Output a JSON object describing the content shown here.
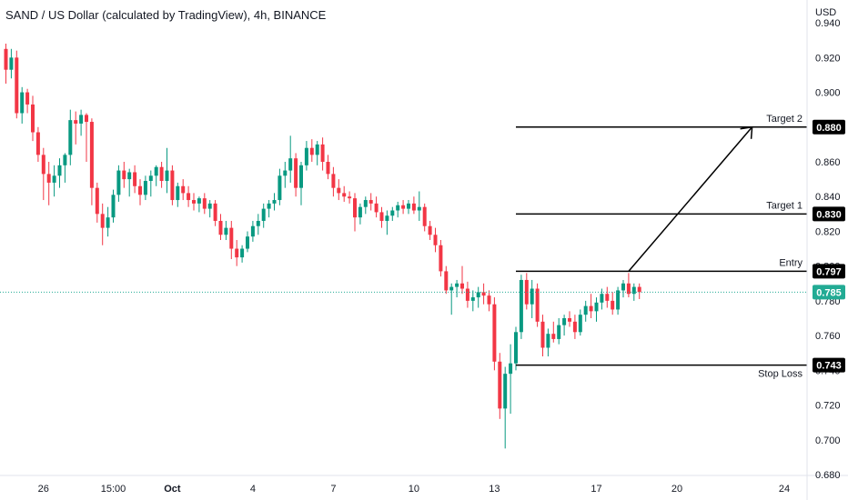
{
  "header": {
    "title": "SAND / US Dollar (calculated by TradingView), 4h, BINANCE",
    "currency": "USD"
  },
  "chart_data": {
    "type": "candlestick",
    "symbol": "SAND / US Dollar",
    "interval": "4h",
    "exchange": "BINANCE",
    "ylim": [
      0.68,
      0.95
    ],
    "y_ticks": [
      "0.680",
      "0.700",
      "0.720",
      "0.740",
      "0.760",
      "0.780",
      "0.800",
      "0.820",
      "0.840",
      "0.860",
      "0.880",
      "0.900",
      "0.920",
      "0.940"
    ],
    "x_ticks": [
      {
        "label": "26",
        "bar": 7
      },
      {
        "label": "15:00",
        "bar": 20
      },
      {
        "label": "Oct",
        "bar": 31
      },
      {
        "label": "4",
        "bar": 46
      },
      {
        "label": "7",
        "bar": 61
      },
      {
        "label": "10",
        "bar": 76
      },
      {
        "label": "13",
        "bar": 91
      },
      {
        "label": "17",
        "bar": 110
      },
      {
        "label": "20",
        "bar": 125
      },
      {
        "label": "24",
        "bar": 145
      }
    ],
    "current_price": "0.785",
    "levels": [
      {
        "name": "Target 2",
        "value": 0.88,
        "label": "0.880",
        "from_bar": 95
      },
      {
        "name": "Target 1",
        "value": 0.83,
        "label": "0.830",
        "from_bar": 95
      },
      {
        "name": "Entry",
        "value": 0.797,
        "label": "0.797",
        "from_bar": 95
      },
      {
        "name": "Stop Loss",
        "value": 0.743,
        "label": "0.743",
        "from_bar": 95
      }
    ],
    "projection_arrow": {
      "from": [
        116,
        0.797
      ],
      "to": [
        139,
        0.88
      ]
    },
    "colors": {
      "up": "#089981",
      "down": "#f23645",
      "current": "#22ab94",
      "level": "#000000",
      "text": "#131722"
    },
    "candles": [
      [
        0.925,
        0.928,
        0.905,
        0.913
      ],
      [
        0.913,
        0.925,
        0.908,
        0.92
      ],
      [
        0.92,
        0.924,
        0.885,
        0.888
      ],
      [
        0.888,
        0.903,
        0.882,
        0.9
      ],
      [
        0.9,
        0.902,
        0.888,
        0.893
      ],
      [
        0.893,
        0.898,
        0.872,
        0.877
      ],
      [
        0.877,
        0.88,
        0.86,
        0.864
      ],
      [
        0.864,
        0.868,
        0.838,
        0.853
      ],
      [
        0.853,
        0.86,
        0.835,
        0.848
      ],
      [
        0.848,
        0.858,
        0.84,
        0.852
      ],
      [
        0.852,
        0.862,
        0.845,
        0.858
      ],
      [
        0.858,
        0.865,
        0.848,
        0.864
      ],
      [
        0.864,
        0.89,
        0.858,
        0.884
      ],
      [
        0.884,
        0.889,
        0.87,
        0.882
      ],
      [
        0.882,
        0.89,
        0.875,
        0.887
      ],
      [
        0.887,
        0.888,
        0.86,
        0.883
      ],
      [
        0.883,
        0.885,
        0.835,
        0.845
      ],
      [
        0.845,
        0.848,
        0.825,
        0.83
      ],
      [
        0.83,
        0.836,
        0.812,
        0.822
      ],
      [
        0.822,
        0.834,
        0.817,
        0.828
      ],
      [
        0.828,
        0.844,
        0.825,
        0.841
      ],
      [
        0.841,
        0.858,
        0.837,
        0.855
      ],
      [
        0.855,
        0.86,
        0.845,
        0.85
      ],
      [
        0.85,
        0.856,
        0.84,
        0.854
      ],
      [
        0.854,
        0.858,
        0.842,
        0.846
      ],
      [
        0.846,
        0.85,
        0.835,
        0.841
      ],
      [
        0.841,
        0.852,
        0.838,
        0.849
      ],
      [
        0.849,
        0.855,
        0.84,
        0.852
      ],
      [
        0.852,
        0.858,
        0.846,
        0.857
      ],
      [
        0.857,
        0.86,
        0.845,
        0.849
      ],
      [
        0.849,
        0.868,
        0.842,
        0.855
      ],
      [
        0.855,
        0.858,
        0.835,
        0.838
      ],
      [
        0.838,
        0.848,
        0.834,
        0.846
      ],
      [
        0.846,
        0.85,
        0.838,
        0.842
      ],
      [
        0.842,
        0.846,
        0.834,
        0.838
      ],
      [
        0.838,
        0.842,
        0.832,
        0.836
      ],
      [
        0.836,
        0.84,
        0.831,
        0.839
      ],
      [
        0.839,
        0.842,
        0.83,
        0.833
      ],
      [
        0.833,
        0.838,
        0.828,
        0.836
      ],
      [
        0.836,
        0.838,
        0.823,
        0.826
      ],
      [
        0.826,
        0.83,
        0.815,
        0.818
      ],
      [
        0.818,
        0.826,
        0.815,
        0.822
      ],
      [
        0.822,
        0.826,
        0.804,
        0.81
      ],
      [
        0.81,
        0.815,
        0.8,
        0.805
      ],
      [
        0.805,
        0.812,
        0.802,
        0.81
      ],
      [
        0.81,
        0.82,
        0.808,
        0.817
      ],
      [
        0.817,
        0.826,
        0.814,
        0.823
      ],
      [
        0.823,
        0.83,
        0.818,
        0.826
      ],
      [
        0.826,
        0.836,
        0.822,
        0.833
      ],
      [
        0.833,
        0.838,
        0.828,
        0.836
      ],
      [
        0.836,
        0.842,
        0.832,
        0.838
      ],
      [
        0.838,
        0.856,
        0.835,
        0.852
      ],
      [
        0.852,
        0.86,
        0.845,
        0.855
      ],
      [
        0.855,
        0.875,
        0.848,
        0.862
      ],
      [
        0.862,
        0.865,
        0.84,
        0.845
      ],
      [
        0.845,
        0.86,
        0.835,
        0.858
      ],
      [
        0.858,
        0.872,
        0.855,
        0.868
      ],
      [
        0.868,
        0.873,
        0.86,
        0.864
      ],
      [
        0.864,
        0.872,
        0.858,
        0.87
      ],
      [
        0.87,
        0.874,
        0.855,
        0.86
      ],
      [
        0.86,
        0.864,
        0.85,
        0.853
      ],
      [
        0.853,
        0.857,
        0.84,
        0.845
      ],
      [
        0.845,
        0.85,
        0.838,
        0.842
      ],
      [
        0.842,
        0.846,
        0.837,
        0.84
      ],
      [
        0.84,
        0.843,
        0.836,
        0.839
      ],
      [
        0.839,
        0.842,
        0.82,
        0.828
      ],
      [
        0.828,
        0.836,
        0.824,
        0.834
      ],
      [
        0.834,
        0.84,
        0.83,
        0.838
      ],
      [
        0.838,
        0.842,
        0.832,
        0.836
      ],
      [
        0.836,
        0.84,
        0.828,
        0.831
      ],
      [
        0.831,
        0.834,
        0.822,
        0.826
      ],
      [
        0.826,
        0.832,
        0.818,
        0.829
      ],
      [
        0.829,
        0.834,
        0.826,
        0.832
      ],
      [
        0.832,
        0.837,
        0.828,
        0.835
      ],
      [
        0.835,
        0.838,
        0.83,
        0.833
      ],
      [
        0.833,
        0.838,
        0.83,
        0.836
      ],
      [
        0.836,
        0.84,
        0.83,
        0.832
      ],
      [
        0.832,
        0.843,
        0.826,
        0.834
      ],
      [
        0.834,
        0.836,
        0.82,
        0.823
      ],
      [
        0.823,
        0.826,
        0.815,
        0.818
      ],
      [
        0.818,
        0.822,
        0.808,
        0.812
      ],
      [
        0.812,
        0.815,
        0.794,
        0.797
      ],
      [
        0.797,
        0.8,
        0.784,
        0.786
      ],
      [
        0.786,
        0.79,
        0.772,
        0.788
      ],
      [
        0.788,
        0.792,
        0.782,
        0.79
      ],
      [
        0.79,
        0.8,
        0.784,
        0.787
      ],
      [
        0.787,
        0.791,
        0.776,
        0.78
      ],
      [
        0.78,
        0.786,
        0.774,
        0.782
      ],
      [
        0.782,
        0.788,
        0.776,
        0.785
      ],
      [
        0.785,
        0.79,
        0.778,
        0.783
      ],
      [
        0.783,
        0.786,
        0.774,
        0.778
      ],
      [
        0.778,
        0.782,
        0.74,
        0.745
      ],
      [
        0.745,
        0.75,
        0.712,
        0.718
      ],
      [
        0.718,
        0.742,
        0.695,
        0.738
      ],
      [
        0.738,
        0.755,
        0.715,
        0.744
      ],
      [
        0.744,
        0.765,
        0.74,
        0.762
      ],
      [
        0.762,
        0.795,
        0.758,
        0.792
      ],
      [
        0.792,
        0.796,
        0.775,
        0.778
      ],
      [
        0.778,
        0.792,
        0.77,
        0.787
      ],
      [
        0.787,
        0.79,
        0.765,
        0.768
      ],
      [
        0.768,
        0.772,
        0.748,
        0.753
      ],
      [
        0.753,
        0.764,
        0.748,
        0.761
      ],
      [
        0.761,
        0.768,
        0.756,
        0.758
      ],
      [
        0.758,
        0.77,
        0.755,
        0.766
      ],
      [
        0.766,
        0.772,
        0.76,
        0.77
      ],
      [
        0.77,
        0.774,
        0.765,
        0.768
      ],
      [
        0.768,
        0.772,
        0.758,
        0.762
      ],
      [
        0.762,
        0.775,
        0.76,
        0.772
      ],
      [
        0.772,
        0.78,
        0.768,
        0.777
      ],
      [
        0.777,
        0.784,
        0.77,
        0.774
      ],
      [
        0.774,
        0.782,
        0.768,
        0.779
      ],
      [
        0.779,
        0.787,
        0.775,
        0.784
      ],
      [
        0.784,
        0.788,
        0.776,
        0.78
      ],
      [
        0.78,
        0.785,
        0.772,
        0.775
      ],
      [
        0.775,
        0.788,
        0.772,
        0.786
      ],
      [
        0.786,
        0.792,
        0.782,
        0.79
      ],
      [
        0.79,
        0.796,
        0.782,
        0.784
      ],
      [
        0.784,
        0.79,
        0.78,
        0.788
      ],
      [
        0.788,
        0.79,
        0.781,
        0.785
      ]
    ]
  }
}
